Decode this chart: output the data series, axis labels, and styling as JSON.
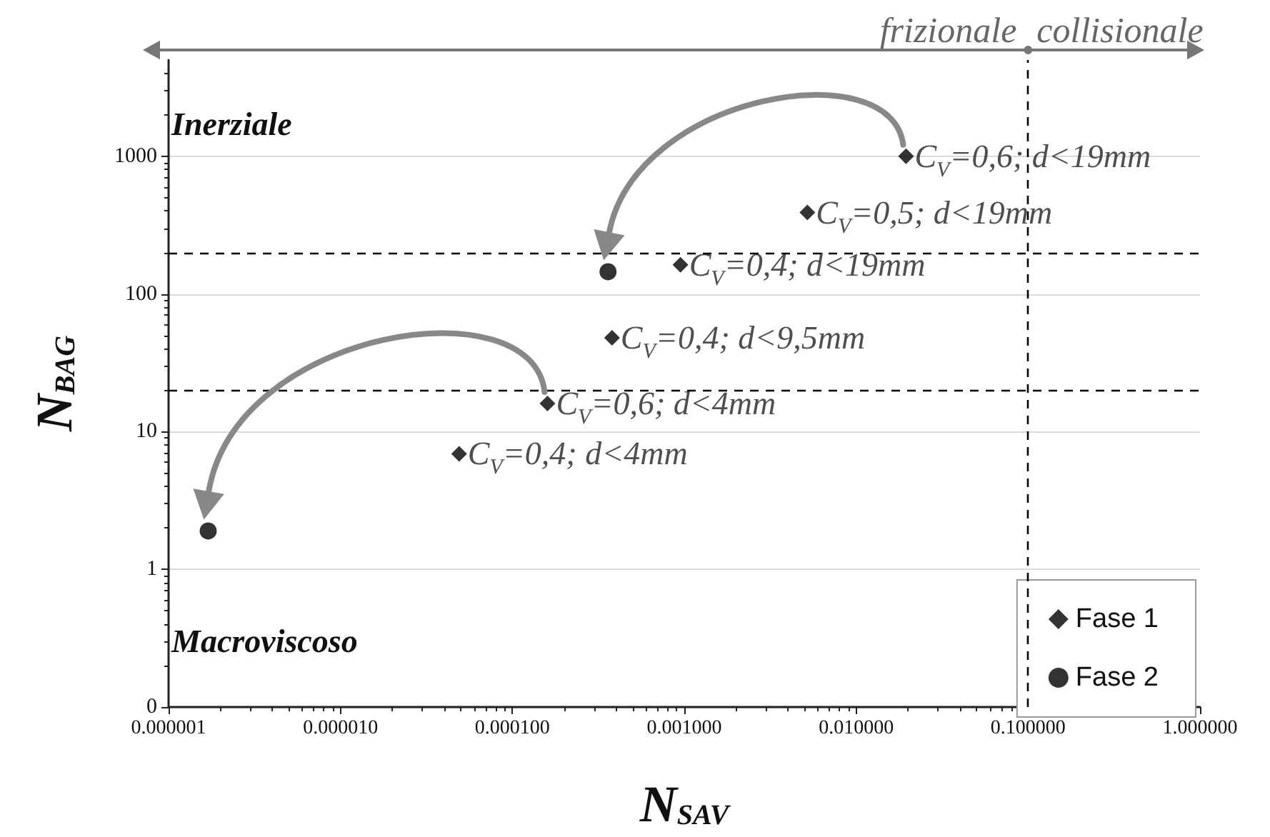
{
  "chart_data": {
    "type": "scatter",
    "xlabel": "N$_{SAV}$",
    "ylabel": "N$_{BAG}$",
    "log": "xy",
    "xlim": [
      1e-06,
      1
    ],
    "ylim": [
      0.1,
      5000
    ],
    "xticks": [
      {
        "value": 1e-06,
        "label": "0.000001"
      },
      {
        "value": 1e-05,
        "label": "0.000010"
      },
      {
        "value": 0.0001,
        "label": "0.000100"
      },
      {
        "value": 0.001,
        "label": "0.001000"
      },
      {
        "value": 0.01,
        "label": "0.010000"
      },
      {
        "value": 0.1,
        "label": "0.100000"
      },
      {
        "value": 1,
        "label": "1.000000"
      }
    ],
    "yticks": [
      {
        "value": 0.1,
        "label": "0"
      },
      1,
      10,
      100,
      1000
    ],
    "grid": "y",
    "legend": "bottom right",
    "series": [
      {
        "name": "Fase 1",
        "color": "#000000",
        "marker": "diamond",
        "x": [
          0.0195,
          0.0052,
          0.00095,
          0.00038,
          0.00016,
          4.9e-05
        ],
        "values": [
          1000,
          390,
          163,
          48,
          16,
          6.9
        ]
      },
      {
        "name": "Fase 2",
        "color": "#000000",
        "marker": "circle",
        "x": [
          0.00036,
          1.7e-06
        ],
        "values": [
          145,
          1.9
        ]
      }
    ],
    "ref_lines": [
      {
        "axis": "y",
        "value": 200,
        "color": "#000000",
        "line_style": "dashed"
      },
      {
        "axis": "y",
        "value": 20,
        "color": "#000000",
        "line_style": "dashed"
      },
      {
        "axis": "x",
        "value": 0.1,
        "color": "#000000",
        "line_style": "dashed"
      }
    ],
    "annotations": [
      "Inerziale",
      "Macroviscoso",
      "frizionale",
      "collisionale",
      {
        "text": "C$_{V}$=0,6; d<19mm",
        "x": 0.0195,
        "y": 1000
      },
      {
        "text": "C$_{V}$=0,5; d<19mm",
        "x": 0.0052,
        "y": 390
      },
      {
        "text": "C$_{V}$=0,4; d<19mm",
        "x": 0.00095,
        "y": 163
      },
      {
        "text": "C$_{V}$=0,4; d<9,5mm",
        "x": 0.00038,
        "y": 48
      },
      {
        "text": "C$_{V}$=0,6; d<4mm",
        "x": 0.00016,
        "y": 16
      },
      {
        "text": "C$_{V}$=0,4; d<4mm",
        "x": 4.9e-05,
        "y": 6.9
      }
    ]
  }
}
